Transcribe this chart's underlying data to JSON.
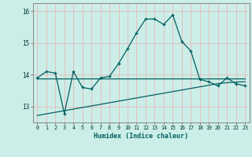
{
  "xlabel": "Humidex (Indice chaleur)",
  "background_color": "#cceee8",
  "grid_color": "#e8b8b8",
  "line_color": "#006060",
  "x_values": [
    0,
    1,
    2,
    3,
    4,
    5,
    6,
    7,
    8,
    9,
    10,
    11,
    12,
    13,
    14,
    15,
    16,
    17,
    18,
    19,
    20,
    21,
    22,
    23
  ],
  "y_main": [
    13.9,
    14.1,
    14.05,
    12.78,
    14.1,
    13.6,
    13.55,
    13.9,
    13.95,
    14.35,
    14.82,
    15.32,
    15.75,
    15.75,
    15.58,
    15.88,
    15.05,
    14.75,
    13.85,
    13.78,
    13.65,
    13.9,
    13.72,
    13.65
  ],
  "y_upper": [
    13.88,
    13.88,
    13.88,
    13.88,
    13.88,
    13.88,
    13.88,
    13.88,
    13.88,
    13.88,
    13.88,
    13.88,
    13.88,
    13.88,
    13.88,
    13.88,
    13.88,
    13.88,
    13.88,
    13.88,
    13.88,
    13.88,
    13.88,
    13.88
  ],
  "y_lower": [
    12.72,
    12.77,
    12.82,
    12.87,
    12.92,
    12.97,
    13.02,
    13.07,
    13.12,
    13.17,
    13.22,
    13.27,
    13.32,
    13.37,
    13.42,
    13.47,
    13.52,
    13.57,
    13.62,
    13.67,
    13.72,
    13.75,
    13.77,
    13.78
  ],
  "ylim": [
    12.5,
    16.25
  ],
  "yticks": [
    13,
    14,
    15,
    16
  ],
  "xticks": [
    0,
    1,
    2,
    3,
    4,
    5,
    6,
    7,
    8,
    9,
    10,
    11,
    12,
    13,
    14,
    15,
    16,
    17,
    18,
    19,
    20,
    21,
    22,
    23
  ]
}
